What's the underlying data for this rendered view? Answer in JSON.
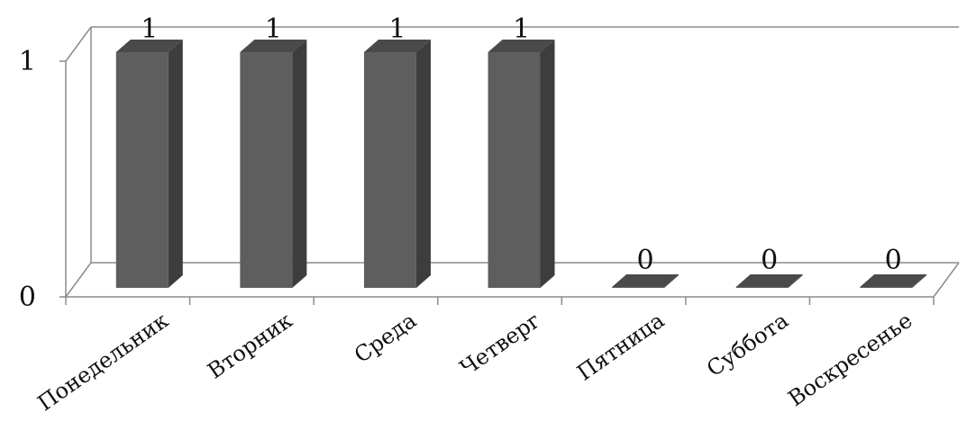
{
  "chart_data": {
    "type": "bar",
    "three_d": true,
    "categories": [
      "Понедельник",
      "Вторник",
      "Среда",
      "Четверг",
      "Пятница",
      "Суббота",
      "Воскресенье"
    ],
    "values": [
      1,
      1,
      1,
      1,
      0,
      0,
      0
    ],
    "data_labels": [
      "1",
      "1",
      "1",
      "1",
      "0",
      "0",
      "0"
    ],
    "y_tick_labels": [
      "0",
      "1"
    ],
    "ylim": [
      0,
      1
    ],
    "title": "",
    "xlabel": "",
    "ylabel": "",
    "legend": "none",
    "grid": true,
    "colors": {
      "bar_front": "#5e5e5e",
      "bar_side": "#3d3d3d",
      "bar_top": "#4a4a4a",
      "axis": "#8c8c8c"
    }
  }
}
